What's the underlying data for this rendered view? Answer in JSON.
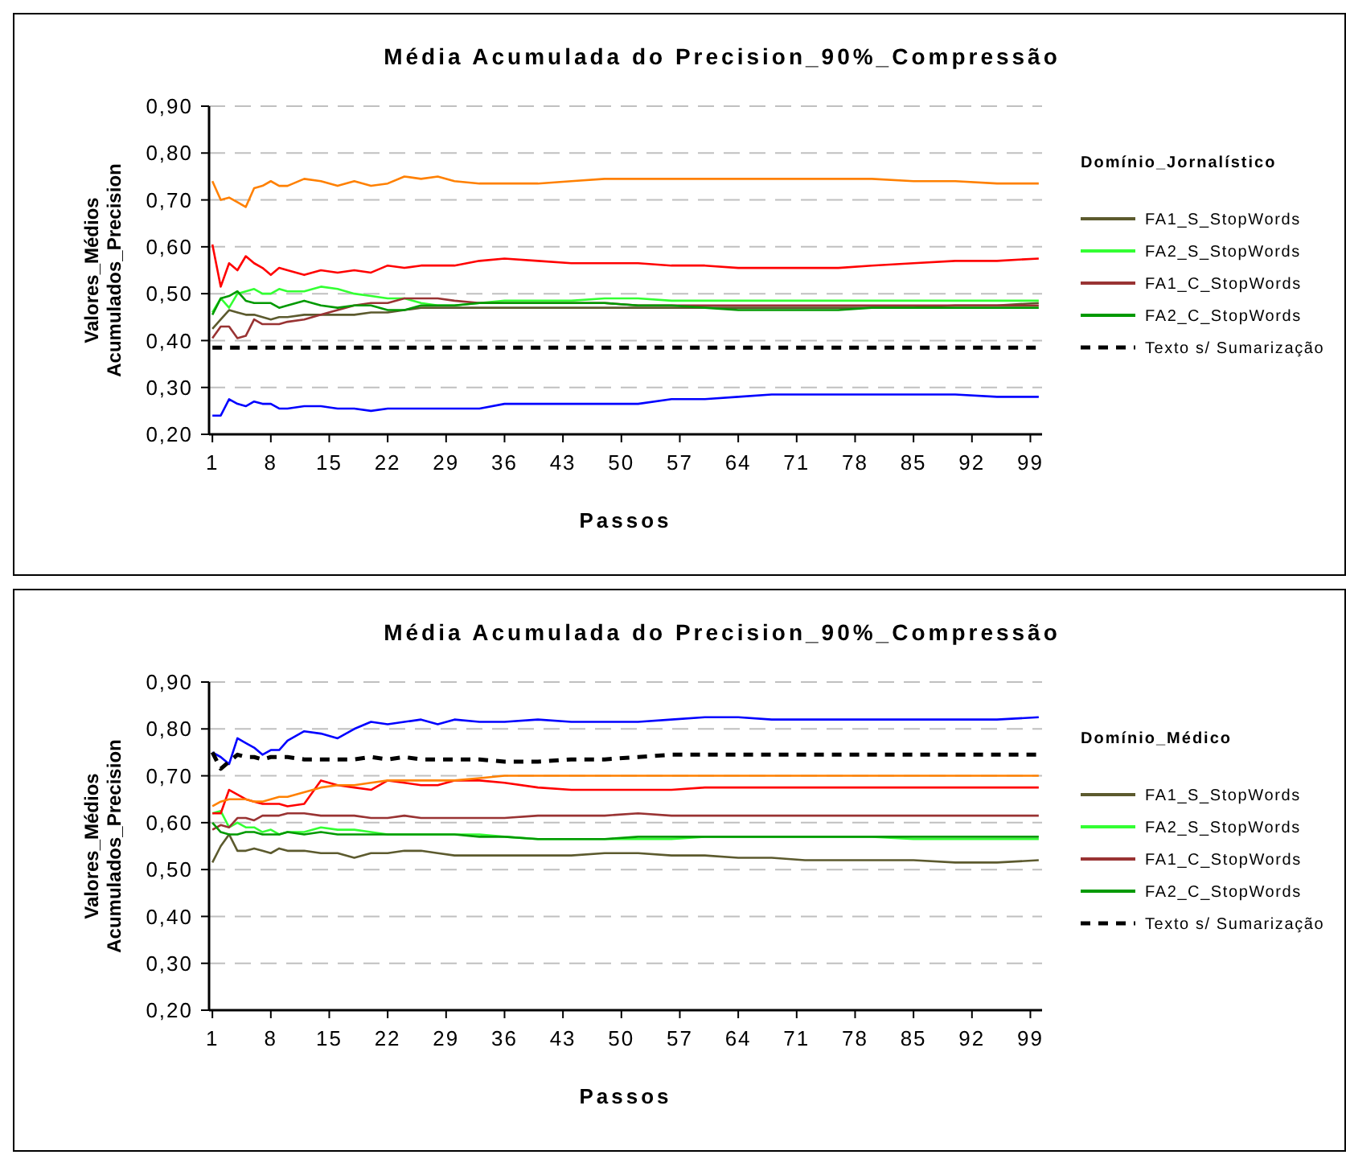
{
  "chart_data": [
    {
      "type": "line",
      "title": "Média Acumulada do Precision_90%_Compressão",
      "xlabel": "Passos",
      "ylabel": "Valores_Médios\nAcumulados_Precision",
      "legend_title": "Domínio_Jornalístico",
      "grid": "y",
      "legend": "right",
      "x": [
        1,
        2,
        3,
        4,
        5,
        6,
        7,
        8,
        9,
        10,
        12,
        14,
        16,
        18,
        20,
        22,
        24,
        26,
        28,
        30,
        33,
        36,
        40,
        44,
        48,
        52,
        56,
        60,
        64,
        68,
        72,
        76,
        80,
        85,
        90,
        95,
        100
      ],
      "xlim": [
        0.6,
        100.4
      ],
      "xticks": [
        1,
        8,
        15,
        22,
        29,
        36,
        43,
        50,
        57,
        64,
        71,
        78,
        85,
        92,
        99
      ],
      "ylim": [
        0.2,
        0.9
      ],
      "yticks": [
        {
          "value": 0.2,
          "label": "0,20"
        },
        {
          "value": 0.3,
          "label": "0,30"
        },
        {
          "value": 0.4,
          "label": "0,40"
        },
        {
          "value": 0.5,
          "label": "0,50"
        },
        {
          "value": 0.6,
          "label": "0,60"
        },
        {
          "value": 0.7,
          "label": "0,70"
        },
        {
          "value": 0.8,
          "label": "0,80"
        },
        {
          "value": 0.9,
          "label": "0,90"
        }
      ],
      "series": [
        {
          "name": "FA1_S_StopWords",
          "color": "#5c5a2e",
          "values": [
            0.425,
            0.445,
            0.465,
            0.46,
            0.455,
            0.455,
            0.45,
            0.445,
            0.45,
            0.45,
            0.455,
            0.455,
            0.455,
            0.455,
            0.46,
            0.46,
            0.465,
            0.47,
            0.47,
            0.47,
            0.47,
            0.47,
            0.47,
            0.47,
            0.47,
            0.47,
            0.47,
            0.47,
            0.47,
            0.47,
            0.47,
            0.47,
            0.47,
            0.47,
            0.475,
            0.475,
            0.48
          ]
        },
        {
          "name": "FA2_S_StopWords",
          "color": "#33ff33",
          "values": [
            0.46,
            0.49,
            0.47,
            0.5,
            0.505,
            0.51,
            0.5,
            0.5,
            0.51,
            0.505,
            0.505,
            0.515,
            0.51,
            0.5,
            0.495,
            0.49,
            0.49,
            0.48,
            0.475,
            0.475,
            0.48,
            0.485,
            0.485,
            0.485,
            0.49,
            0.49,
            0.485,
            0.485,
            0.485,
            0.485,
            0.485,
            0.485,
            0.485,
            0.485,
            0.485,
            0.485,
            0.485
          ]
        },
        {
          "color": "#0000ff",
          "values": [
            0.24,
            0.24,
            0.275,
            0.265,
            0.26,
            0.27,
            0.265,
            0.265,
            0.255,
            0.255,
            0.26,
            0.26,
            0.255,
            0.255,
            0.25,
            0.255,
            0.255,
            0.255,
            0.255,
            0.255,
            0.255,
            0.265,
            0.265,
            0.265,
            0.265,
            0.265,
            0.275,
            0.275,
            0.28,
            0.285,
            0.285,
            0.285,
            0.285,
            0.285,
            0.285,
            0.28,
            0.28
          ]
        },
        {
          "color": "#ff0000",
          "values": [
            0.605,
            0.515,
            0.565,
            0.55,
            0.58,
            0.565,
            0.555,
            0.54,
            0.555,
            0.55,
            0.54,
            0.55,
            0.545,
            0.55,
            0.545,
            0.56,
            0.555,
            0.56,
            0.56,
            0.56,
            0.57,
            0.575,
            0.57,
            0.565,
            0.565,
            0.565,
            0.56,
            0.56,
            0.555,
            0.555,
            0.555,
            0.555,
            0.56,
            0.565,
            0.57,
            0.57,
            0.575
          ]
        },
        {
          "color": "#ff8000",
          "values": [
            0.74,
            0.7,
            0.705,
            0.695,
            0.685,
            0.725,
            0.73,
            0.74,
            0.73,
            0.73,
            0.745,
            0.74,
            0.73,
            0.74,
            0.73,
            0.735,
            0.75,
            0.745,
            0.75,
            0.74,
            0.735,
            0.735,
            0.735,
            0.74,
            0.745,
            0.745,
            0.745,
            0.745,
            0.745,
            0.745,
            0.745,
            0.745,
            0.745,
            0.74,
            0.74,
            0.735,
            0.735
          ]
        },
        {
          "name": "FA1_C_StopWords",
          "color": "#993333",
          "values": [
            0.405,
            0.43,
            0.43,
            0.405,
            0.41,
            0.445,
            0.435,
            0.435,
            0.435,
            0.44,
            0.445,
            0.455,
            0.465,
            0.475,
            0.48,
            0.48,
            0.49,
            0.49,
            0.49,
            0.485,
            0.48,
            0.48,
            0.48,
            0.48,
            0.48,
            0.475,
            0.475,
            0.475,
            0.475,
            0.475,
            0.475,
            0.475,
            0.475,
            0.475,
            0.475,
            0.475,
            0.475
          ]
        },
        {
          "name": "FA2_C_StopWords",
          "color": "#009900",
          "values": [
            0.455,
            0.49,
            0.495,
            0.505,
            0.485,
            0.48,
            0.48,
            0.48,
            0.47,
            0.475,
            0.485,
            0.475,
            0.47,
            0.475,
            0.475,
            0.465,
            0.465,
            0.475,
            0.475,
            0.475,
            0.48,
            0.48,
            0.48,
            0.48,
            0.48,
            0.475,
            0.475,
            0.47,
            0.465,
            0.465,
            0.465,
            0.465,
            0.47,
            0.47,
            0.47,
            0.47,
            0.47
          ]
        },
        {
          "name": "Texto s/ Sumarização",
          "color": "#000000",
          "line_style": "dashed",
          "values": [
            0.385,
            0.385,
            0.385,
            0.385,
            0.385,
            0.385,
            0.385,
            0.385,
            0.385,
            0.385,
            0.385,
            0.385,
            0.385,
            0.385,
            0.385,
            0.385,
            0.385,
            0.385,
            0.385,
            0.385,
            0.385,
            0.385,
            0.385,
            0.385,
            0.385,
            0.385,
            0.385,
            0.385,
            0.385,
            0.385,
            0.385,
            0.385,
            0.385,
            0.385,
            0.385,
            0.385,
            0.385
          ]
        }
      ]
    },
    {
      "type": "line",
      "title": "Média Acumulada do Precision_90%_Compressão",
      "xlabel": "Passos",
      "ylabel": "Valores_Médios\nAcumulados_Precision",
      "legend_title": "Domínio_Médico",
      "grid": "y",
      "legend": "right",
      "x": [
        1,
        2,
        3,
        4,
        5,
        6,
        7,
        8,
        9,
        10,
        12,
        14,
        16,
        18,
        20,
        22,
        24,
        26,
        28,
        30,
        33,
        36,
        40,
        44,
        48,
        52,
        56,
        60,
        64,
        68,
        72,
        76,
        80,
        85,
        90,
        95,
        100
      ],
      "xlim": [
        0.6,
        100.4
      ],
      "xticks": [
        1,
        8,
        15,
        22,
        29,
        36,
        43,
        50,
        57,
        64,
        71,
        78,
        85,
        92,
        99
      ],
      "ylim": [
        0.2,
        0.9
      ],
      "yticks": [
        {
          "value": 0.2,
          "label": "0,20"
        },
        {
          "value": 0.3,
          "label": "0,30"
        },
        {
          "value": 0.4,
          "label": "0,40"
        },
        {
          "value": 0.5,
          "label": "0,50"
        },
        {
          "value": 0.6,
          "label": "0,60"
        },
        {
          "value": 0.7,
          "label": "0,70"
        },
        {
          "value": 0.8,
          "label": "0,80"
        },
        {
          "value": 0.9,
          "label": "0,90"
        }
      ],
      "series": [
        {
          "name": "FA1_S_StopWords",
          "color": "#5c5a2e",
          "values": [
            0.515,
            0.55,
            0.575,
            0.54,
            0.54,
            0.545,
            0.54,
            0.535,
            0.545,
            0.54,
            0.54,
            0.535,
            0.535,
            0.525,
            0.535,
            0.535,
            0.54,
            0.54,
            0.535,
            0.53,
            0.53,
            0.53,
            0.53,
            0.53,
            0.535,
            0.535,
            0.53,
            0.53,
            0.525,
            0.525,
            0.52,
            0.52,
            0.52,
            0.52,
            0.515,
            0.515,
            0.52
          ]
        },
        {
          "name": "FA2_S_StopWords",
          "color": "#33ff33",
          "values": [
            0.62,
            0.625,
            0.59,
            0.6,
            0.59,
            0.59,
            0.58,
            0.585,
            0.575,
            0.58,
            0.58,
            0.59,
            0.585,
            0.585,
            0.58,
            0.575,
            0.575,
            0.575,
            0.575,
            0.575,
            0.575,
            0.57,
            0.565,
            0.565,
            0.565,
            0.565,
            0.565,
            0.57,
            0.57,
            0.57,
            0.57,
            0.57,
            0.57,
            0.565,
            0.565,
            0.565,
            0.565
          ]
        },
        {
          "color": "#0000ff",
          "values": [
            0.75,
            0.74,
            0.725,
            0.78,
            0.77,
            0.76,
            0.745,
            0.755,
            0.755,
            0.775,
            0.795,
            0.79,
            0.78,
            0.8,
            0.815,
            0.81,
            0.815,
            0.82,
            0.81,
            0.82,
            0.815,
            0.815,
            0.82,
            0.815,
            0.815,
            0.815,
            0.82,
            0.825,
            0.825,
            0.82,
            0.82,
            0.82,
            0.82,
            0.82,
            0.82,
            0.82,
            0.825
          ]
        },
        {
          "color": "#ff0000",
          "values": [
            0.62,
            0.62,
            0.67,
            0.66,
            0.65,
            0.645,
            0.64,
            0.64,
            0.64,
            0.635,
            0.64,
            0.69,
            0.68,
            0.675,
            0.67,
            0.69,
            0.685,
            0.68,
            0.68,
            0.69,
            0.69,
            0.685,
            0.675,
            0.67,
            0.67,
            0.67,
            0.67,
            0.675,
            0.675,
            0.675,
            0.675,
            0.675,
            0.675,
            0.675,
            0.675,
            0.675,
            0.675
          ]
        },
        {
          "color": "#ff8000",
          "values": [
            0.635,
            0.645,
            0.65,
            0.65,
            0.65,
            0.645,
            0.645,
            0.65,
            0.655,
            0.655,
            0.665,
            0.675,
            0.68,
            0.68,
            0.685,
            0.69,
            0.69,
            0.69,
            0.69,
            0.69,
            0.695,
            0.7,
            0.7,
            0.7,
            0.7,
            0.7,
            0.7,
            0.7,
            0.7,
            0.7,
            0.7,
            0.7,
            0.7,
            0.7,
            0.7,
            0.7,
            0.7
          ]
        },
        {
          "name": "FA1_C_StopWords",
          "color": "#993333",
          "values": [
            0.585,
            0.595,
            0.59,
            0.61,
            0.61,
            0.605,
            0.615,
            0.615,
            0.615,
            0.62,
            0.62,
            0.615,
            0.615,
            0.615,
            0.61,
            0.61,
            0.615,
            0.61,
            0.61,
            0.61,
            0.61,
            0.61,
            0.615,
            0.615,
            0.615,
            0.62,
            0.615,
            0.615,
            0.615,
            0.615,
            0.615,
            0.615,
            0.615,
            0.615,
            0.615,
            0.615,
            0.615
          ]
        },
        {
          "name": "FA2_C_StopWords",
          "color": "#009900",
          "values": [
            0.6,
            0.58,
            0.575,
            0.575,
            0.58,
            0.58,
            0.575,
            0.575,
            0.575,
            0.58,
            0.575,
            0.58,
            0.575,
            0.575,
            0.575,
            0.575,
            0.575,
            0.575,
            0.575,
            0.575,
            0.57,
            0.57,
            0.565,
            0.565,
            0.565,
            0.57,
            0.57,
            0.57,
            0.57,
            0.57,
            0.57,
            0.57,
            0.57,
            0.57,
            0.57,
            0.57,
            0.57
          ]
        },
        {
          "name": "Texto s/ Sumarização",
          "color": "#000000",
          "line_style": "dashed",
          "values": [
            0.75,
            0.715,
            0.73,
            0.745,
            0.74,
            0.74,
            0.735,
            0.74,
            0.74,
            0.74,
            0.735,
            0.735,
            0.735,
            0.735,
            0.74,
            0.735,
            0.74,
            0.735,
            0.735,
            0.735,
            0.735,
            0.73,
            0.73,
            0.735,
            0.735,
            0.74,
            0.745,
            0.745,
            0.745,
            0.745,
            0.745,
            0.745,
            0.745,
            0.745,
            0.745,
            0.745,
            0.745
          ]
        }
      ]
    }
  ]
}
